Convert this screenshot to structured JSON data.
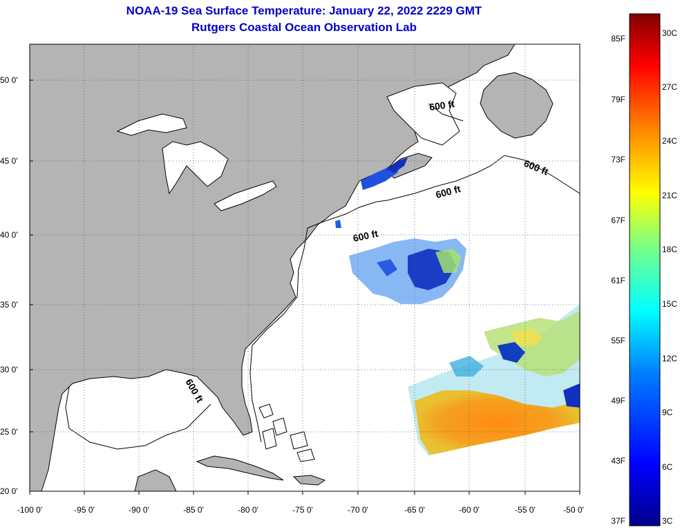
{
  "title": {
    "line1": "NOAA-19 Sea Surface Temperature:  January 22, 2022 2229 GMT",
    "line2": "Rutgers Coastal Ocean Observation Lab"
  },
  "axes": {
    "x_ticks": [
      "-100 0'",
      "-95 0'",
      "-90 0'",
      "-85 0'",
      "-80 0'",
      "-75 0'",
      "-70 0'",
      "-65 0'",
      "-60 0'",
      "-55 0'",
      "-50 0'"
    ],
    "y_ticks": [
      "50 0'",
      "45 0'",
      "40 0'",
      "35 0'",
      "30 0'",
      "25 0'",
      "20 0'"
    ]
  },
  "contour_labels": [
    "600 ft",
    "600 ft",
    "600 ft",
    "600 ft",
    "600 ft"
  ],
  "colorbar": {
    "fahrenheit_labels": [
      "85F",
      "79F",
      "73F",
      "67F",
      "61F",
      "55F",
      "49F",
      "43F",
      "37F"
    ],
    "celsius_labels": [
      "30C",
      "27C",
      "24C",
      "21C",
      "18C",
      "15C",
      "12C",
      "9C",
      "6C",
      "3C"
    ],
    "range_c": [
      3,
      30
    ]
  },
  "colors": {
    "land": "#b4b4b4",
    "ocean": "#ffffff",
    "title": "#0000cc"
  }
}
